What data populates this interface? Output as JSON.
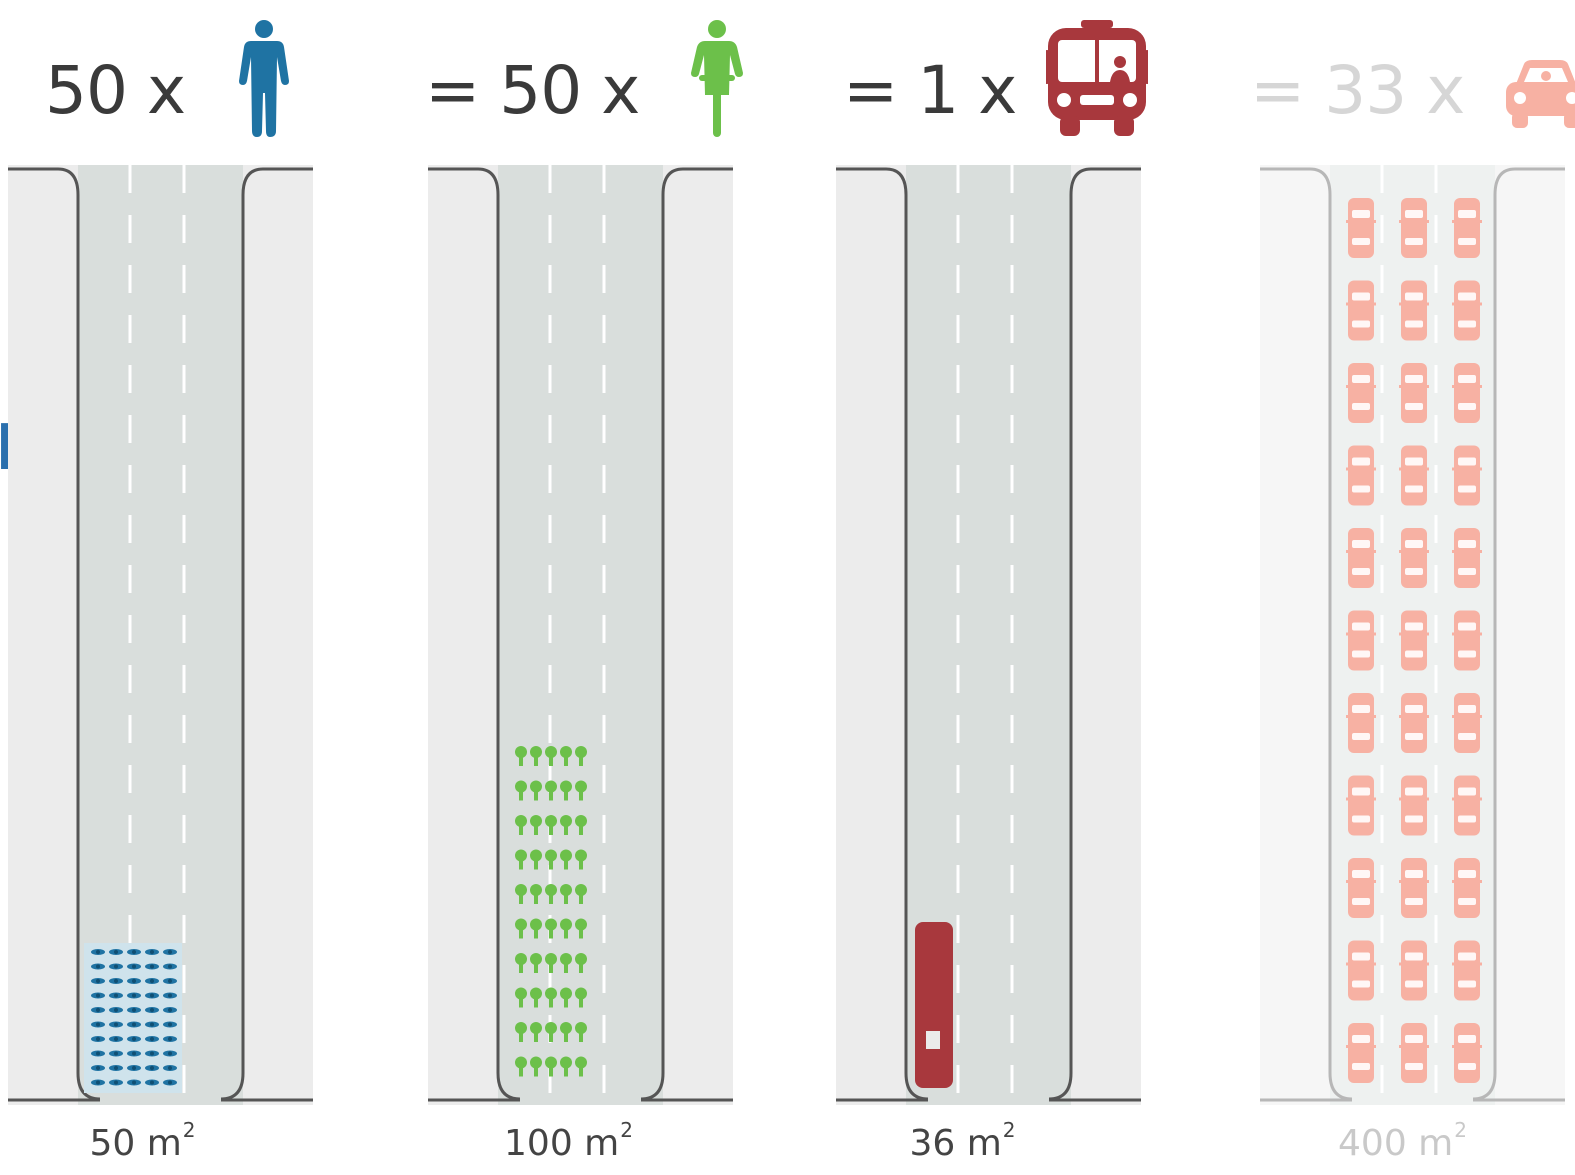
{
  "colors": {
    "pedestrian": "#1f73a3",
    "cyclist": "#6cc04a",
    "bus": "#a8383d",
    "car": "#f7b1a3",
    "road": "#d9dedc",
    "sidewalk": "#ececec",
    "curb": "#555555"
  },
  "stray_text": "r",
  "panels": [
    {
      "id": "pedestrians",
      "header": "50 x",
      "icon": "pedestrian-icon",
      "area_value": "50 m",
      "area_unit_sup": "2",
      "count_shown": 50,
      "faded": false
    },
    {
      "id": "cyclists",
      "header": "= 50 x",
      "icon": "cyclist-icon",
      "area_value": "100 m",
      "area_unit_sup": "2",
      "count_shown": 50,
      "faded": false
    },
    {
      "id": "bus",
      "header": "= 1 x",
      "icon": "bus-icon",
      "area_value": "36 m",
      "area_unit_sup": "2",
      "count_shown": 1,
      "faded": false
    },
    {
      "id": "cars",
      "header": "= 33 x",
      "icon": "car-icon",
      "area_value": "400 m",
      "area_unit_sup": "2",
      "count_shown": 33,
      "faded": true
    }
  ]
}
